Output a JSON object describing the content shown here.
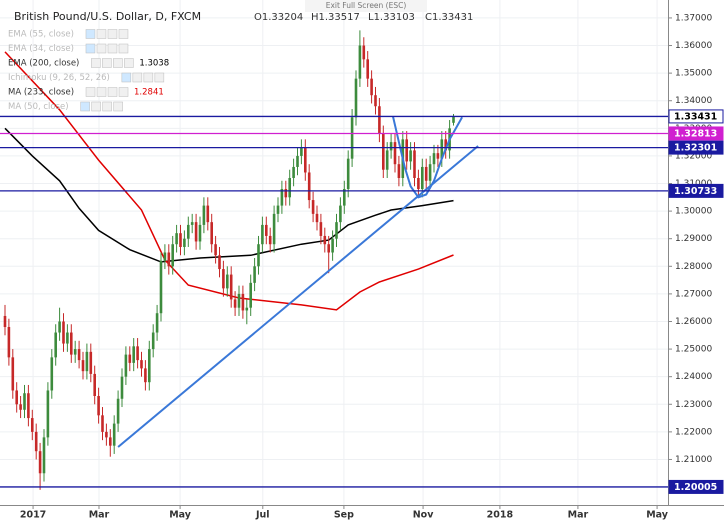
{
  "chart_data": {
    "type": "candlestick",
    "title": "British Pound/U.S. Dollar, D, FXCM",
    "ohlc_labels": [
      "O1.33204",
      "H1.33517",
      "L1.33103",
      "C1.33431"
    ],
    "top_notice": "Exit Full Screen (ESC)",
    "indicators": [
      {
        "label": "EMA (55, close)",
        "active": false
      },
      {
        "label": "EMA (34, close)",
        "active": false
      },
      {
        "label": "EMA (200, close)",
        "active": true,
        "value_label": "1.3038",
        "color": "#000000"
      },
      {
        "label": "Ichimoku (9, 26, 52, 26)",
        "active": false
      },
      {
        "label": "MA (233, close)",
        "active": true,
        "value_label": "1.2841",
        "color": "#e00000"
      },
      {
        "label": "MA (50, close)",
        "active": false
      }
    ],
    "up_color": "#3d8b3d",
    "down_color": "#c62828",
    "candles": [
      [
        1.262,
        1.266,
        1.255,
        1.258
      ],
      [
        1.258,
        1.261,
        1.244,
        1.247
      ],
      [
        1.247,
        1.25,
        1.232,
        1.235
      ],
      [
        1.235,
        1.238,
        1.227,
        1.23
      ],
      [
        1.23,
        1.233,
        1.225,
        1.228
      ],
      [
        1.228,
        1.237,
        1.225,
        1.234
      ],
      [
        1.234,
        1.237,
        1.222,
        1.225
      ],
      [
        1.225,
        1.228,
        1.217,
        1.22
      ],
      [
        1.22,
        1.223,
        1.21,
        1.213
      ],
      [
        1.213,
        1.216,
        1.199,
        1.205
      ],
      [
        1.205,
        1.221,
        1.202,
        1.218
      ],
      [
        1.218,
        1.238,
        1.215,
        1.235
      ],
      [
        1.235,
        1.25,
        1.232,
        1.247
      ],
      [
        1.247,
        1.259,
        1.244,
        1.256
      ],
      [
        1.256,
        1.265,
        1.253,
        1.26
      ],
      [
        1.26,
        1.263,
        1.249,
        1.252
      ],
      [
        1.252,
        1.259,
        1.249,
        1.256
      ],
      [
        1.256,
        1.259,
        1.245,
        1.248
      ],
      [
        1.248,
        1.253,
        1.245,
        1.25
      ],
      [
        1.25,
        1.253,
        1.243,
        1.246
      ],
      [
        1.246,
        1.249,
        1.239,
        1.242
      ],
      [
        1.242,
        1.252,
        1.239,
        1.249
      ],
      [
        1.249,
        1.252,
        1.238,
        1.241
      ],
      [
        1.241,
        1.244,
        1.23,
        1.233
      ],
      [
        1.233,
        1.236,
        1.223,
        1.226
      ],
      [
        1.226,
        1.229,
        1.217,
        1.22
      ],
      [
        1.22,
        1.223,
        1.215,
        1.218
      ],
      [
        1.218,
        1.221,
        1.211,
        1.215
      ],
      [
        1.215,
        1.226,
        1.212,
        1.223
      ],
      [
        1.223,
        1.235,
        1.22,
        1.232
      ],
      [
        1.232,
        1.243,
        1.229,
        1.24
      ],
      [
        1.24,
        1.251,
        1.237,
        1.248
      ],
      [
        1.248,
        1.251,
        1.242,
        1.245
      ],
      [
        1.245,
        1.254,
        1.242,
        1.251
      ],
      [
        1.251,
        1.254,
        1.243,
        1.246
      ],
      [
        1.246,
        1.249,
        1.24,
        1.243
      ],
      [
        1.243,
        1.246,
        1.235,
        1.238
      ],
      [
        1.238,
        1.253,
        1.235,
        1.25
      ],
      [
        1.25,
        1.259,
        1.247,
        1.256
      ],
      [
        1.256,
        1.266,
        1.253,
        1.263
      ],
      [
        1.263,
        1.285,
        1.26,
        1.282
      ],
      [
        1.282,
        1.288,
        1.279,
        1.285
      ],
      [
        1.285,
        1.288,
        1.277,
        1.28
      ],
      [
        1.28,
        1.291,
        1.277,
        1.288
      ],
      [
        1.288,
        1.295,
        1.285,
        1.292
      ],
      [
        1.292,
        1.295,
        1.284,
        1.287
      ],
      [
        1.287,
        1.293,
        1.284,
        1.29
      ],
      [
        1.29,
        1.298,
        1.287,
        1.295
      ],
      [
        1.295,
        1.299,
        1.292,
        1.296
      ],
      [
        1.296,
        1.299,
        1.286,
        1.289
      ],
      [
        1.289,
        1.298,
        1.286,
        1.295
      ],
      [
        1.295,
        1.305,
        1.292,
        1.302
      ],
      [
        1.302,
        1.305,
        1.293,
        1.296
      ],
      [
        1.296,
        1.299,
        1.285,
        1.288
      ],
      [
        1.288,
        1.291,
        1.281,
        1.284
      ],
      [
        1.284,
        1.287,
        1.276,
        1.279
      ],
      [
        1.279,
        1.282,
        1.269,
        1.272
      ],
      [
        1.272,
        1.28,
        1.269,
        1.277
      ],
      [
        1.277,
        1.28,
        1.265,
        1.268
      ],
      [
        1.268,
        1.271,
        1.262,
        1.265
      ],
      [
        1.265,
        1.273,
        1.262,
        1.27
      ],
      [
        1.27,
        1.273,
        1.261,
        1.264
      ],
      [
        1.264,
        1.268,
        1.259,
        1.265
      ],
      [
        1.265,
        1.277,
        1.262,
        1.274
      ],
      [
        1.274,
        1.283,
        1.271,
        1.28
      ],
      [
        1.28,
        1.291,
        1.277,
        1.288
      ],
      [
        1.288,
        1.298,
        1.285,
        1.295
      ],
      [
        1.295,
        1.298,
        1.288,
        1.291
      ],
      [
        1.291,
        1.294,
        1.285,
        1.288
      ],
      [
        1.288,
        1.302,
        1.285,
        1.299
      ],
      [
        1.299,
        1.305,
        1.296,
        1.302
      ],
      [
        1.302,
        1.311,
        1.299,
        1.308
      ],
      [
        1.308,
        1.311,
        1.302,
        1.305
      ],
      [
        1.305,
        1.315,
        1.302,
        1.312
      ],
      [
        1.312,
        1.319,
        1.309,
        1.316
      ],
      [
        1.316,
        1.323,
        1.313,
        1.32
      ],
      [
        1.32,
        1.326,
        1.317,
        1.323
      ],
      [
        1.323,
        1.326,
        1.311,
        1.314
      ],
      [
        1.314,
        1.317,
        1.301,
        1.304
      ],
      [
        1.304,
        1.307,
        1.296,
        1.299
      ],
      [
        1.299,
        1.302,
        1.293,
        1.296
      ],
      [
        1.296,
        1.299,
        1.288,
        1.291
      ],
      [
        1.291,
        1.294,
        1.285,
        1.288
      ],
      [
        1.288,
        1.291,
        1.2775,
        1.285
      ],
      [
        1.285,
        1.293,
        1.282,
        1.29
      ],
      [
        1.29,
        1.299,
        1.287,
        1.296
      ],
      [
        1.296,
        1.305,
        1.293,
        1.302
      ],
      [
        1.302,
        1.311,
        1.299,
        1.308
      ],
      [
        1.308,
        1.322,
        1.305,
        1.319
      ],
      [
        1.319,
        1.337,
        1.316,
        1.334
      ],
      [
        1.334,
        1.351,
        1.331,
        1.348
      ],
      [
        1.348,
        1.3655,
        1.345,
        1.36
      ],
      [
        1.36,
        1.363,
        1.352,
        1.355
      ],
      [
        1.355,
        1.358,
        1.345,
        1.348
      ],
      [
        1.348,
        1.351,
        1.339,
        1.342
      ],
      [
        1.342,
        1.345,
        1.335,
        1.338
      ],
      [
        1.338,
        1.341,
        1.325,
        1.328
      ],
      [
        1.328,
        1.331,
        1.312,
        1.315
      ],
      [
        1.315,
        1.325,
        1.312,
        1.322
      ],
      [
        1.322,
        1.328,
        1.319,
        1.325
      ],
      [
        1.325,
        1.328,
        1.314,
        1.317
      ],
      [
        1.317,
        1.32,
        1.309,
        1.312
      ],
      [
        1.312,
        1.329,
        1.309,
        1.326
      ],
      [
        1.326,
        1.329,
        1.315,
        1.318
      ],
      [
        1.318,
        1.325,
        1.315,
        1.322
      ],
      [
        1.322,
        1.325,
        1.309,
        1.312
      ],
      [
        1.312,
        1.315,
        1.305,
        1.308
      ],
      [
        1.308,
        1.319,
        1.305,
        1.316
      ],
      [
        1.316,
        1.319,
        1.308,
        1.311
      ],
      [
        1.311,
        1.32,
        1.308,
        1.317
      ],
      [
        1.317,
        1.324,
        1.314,
        1.321
      ],
      [
        1.321,
        1.324,
        1.316,
        1.319
      ],
      [
        1.319,
        1.329,
        1.316,
        1.326
      ],
      [
        1.326,
        1.329,
        1.319,
        1.322
      ],
      [
        1.322,
        1.333,
        1.319,
        1.33
      ],
      [
        1.332,
        1.3352,
        1.331,
        1.3343
      ]
    ],
    "series": [
      {
        "name": "EMA (200, close)",
        "color": "#000000",
        "x": [
          0,
          7,
          14,
          19,
          24,
          32,
          40,
          50,
          63,
          76,
          83,
          88,
          95,
          99,
          107,
          115
        ],
        "values": [
          1.33,
          1.32,
          1.311,
          1.301,
          1.293,
          1.286,
          1.2816,
          1.283,
          1.284,
          1.288,
          1.2895,
          1.295,
          1.2985,
          1.3004,
          1.302,
          1.3038
        ]
      },
      {
        "name": "MA (233, close)",
        "color": "#e00000",
        "x": [
          0,
          14,
          24,
          35,
          41,
          47,
          60,
          76,
          85,
          91,
          96,
          106,
          115
        ],
        "values": [
          1.3577,
          1.3367,
          1.3185,
          1.3004,
          1.2823,
          1.2732,
          1.2685,
          1.266,
          1.2642,
          1.2707,
          1.2743,
          1.279,
          1.2841
        ]
      }
    ],
    "levels": [
      {
        "value": 1.33431,
        "color": "#1a1aa0"
      },
      {
        "value": 1.32813,
        "color": "#d020d0"
      },
      {
        "value": 1.32301,
        "color": "#1a1aa0"
      },
      {
        "value": 1.30733,
        "color": "#1a1aa0"
      },
      {
        "value": 1.20005,
        "color": "#1a1aa0"
      }
    ],
    "trend_line": {
      "color": "#3a78d8",
      "x": [
        29,
        121.3
      ],
      "values": [
        1.2145,
        1.3236
      ]
    },
    "cup": {
      "color": "#3a78d8",
      "x": [
        99.5,
        101,
        102.5,
        104,
        106,
        108,
        110,
        112,
        114,
        117.2
      ],
      "values": [
        1.3343,
        1.325,
        1.316,
        1.309,
        1.305,
        1.306,
        1.311,
        1.319,
        1.326,
        1.334
      ]
    },
    "xlim": [
      -1.28,
      170
    ],
    "ylim": [
      1.1935,
      1.3765
    ],
    "xticks": [
      {
        "value": 7.2,
        "label": "2017"
      },
      {
        "value": 24.1,
        "label": "Mar"
      },
      {
        "value": 44.9,
        "label": "May"
      },
      {
        "value": 66.1,
        "label": "Jul"
      },
      {
        "value": 86.9,
        "label": "Sep"
      },
      {
        "value": 107.2,
        "label": "Nov"
      },
      {
        "value": 126.9,
        "label": "2018"
      },
      {
        "value": 146.9,
        "label": "Mar"
      },
      {
        "value": 167.2,
        "label": "May"
      }
    ],
    "yticks": [
      {
        "value": 1.2,
        "label": "1.20000"
      },
      {
        "value": 1.21,
        "label": "1.21000"
      },
      {
        "value": 1.22,
        "label": "1.22000"
      },
      {
        "value": 1.23,
        "label": "1.23000"
      },
      {
        "value": 1.24,
        "label": "1.24000"
      },
      {
        "value": 1.25,
        "label": "1.25000"
      },
      {
        "value": 1.26,
        "label": "1.26000"
      },
      {
        "value": 1.27,
        "label": "1.27000"
      },
      {
        "value": 1.28,
        "label": "1.28000"
      },
      {
        "value": 1.29,
        "label": "1.29000"
      },
      {
        "value": 1.3,
        "label": "1.30000"
      },
      {
        "value": 1.31,
        "label": "1.31000"
      },
      {
        "value": 1.32,
        "label": "1.32000"
      },
      {
        "value": 1.33,
        "label": "1.33000"
      },
      {
        "value": 1.34,
        "label": "1.34000"
      },
      {
        "value": 1.35,
        "label": "1.35000"
      },
      {
        "value": 1.36,
        "label": "1.36000"
      },
      {
        "value": 1.37,
        "label": "1.37000"
      }
    ],
    "grid": true
  }
}
